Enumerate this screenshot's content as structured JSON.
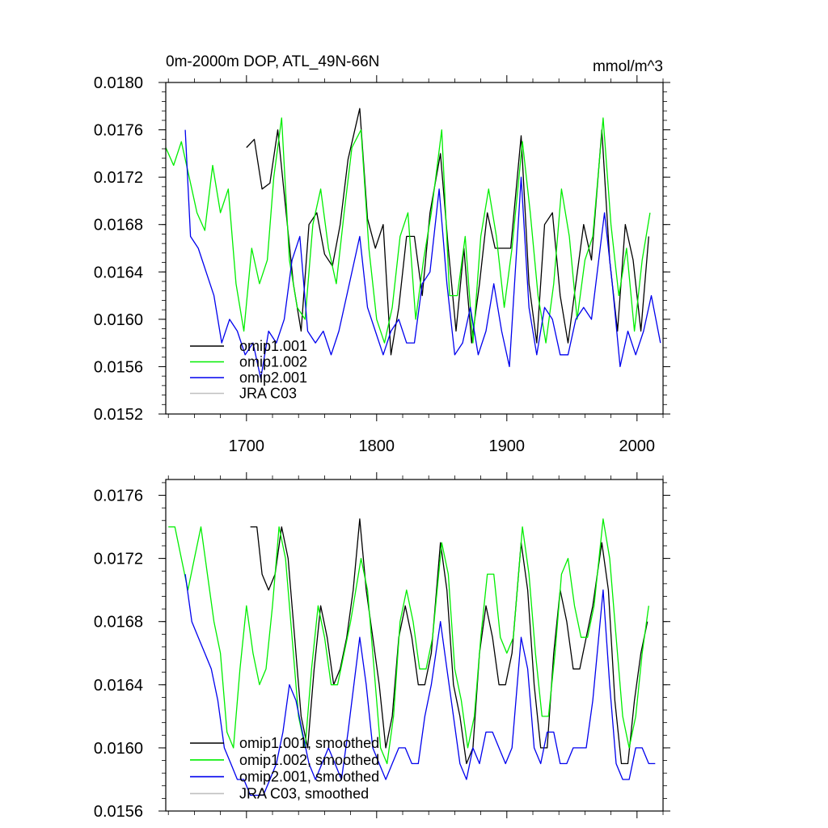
{
  "chart_data": [
    {
      "type": "line",
      "title": "0m-2000m DOP, ATL_49N-66N",
      "units": "mmol/m^3",
      "xlabel": "",
      "ylabel": "",
      "xlim": [
        1638,
        2020
      ],
      "ylim": [
        0.0152,
        0.018
      ],
      "xticks": [
        1700,
        1800,
        1900,
        2000
      ],
      "xtick_labels": [
        "1700",
        "1800",
        "1900",
        "2000"
      ],
      "yticks": [
        0.0152,
        0.0156,
        0.016,
        0.0164,
        0.0168,
        0.0172,
        0.0176,
        0.018
      ],
      "ytick_labels": [
        "0.0152",
        "0.0156",
        "0.0160",
        "0.0164",
        "0.0168",
        "0.0172",
        "0.0176",
        "0.0180"
      ],
      "legend_location": "bottom-left",
      "series": [
        {
          "name": "omip1.001",
          "color": "#000000",
          "x": [
            1700,
            1706,
            1712,
            1718,
            1724,
            1730,
            1736,
            1742,
            1748,
            1754,
            1760,
            1766,
            1772,
            1778,
            1787,
            1793,
            1799,
            1805,
            1811,
            1817,
            1823,
            1829,
            1835,
            1841,
            1849,
            1855,
            1861,
            1867,
            1873,
            1879,
            1885,
            1891,
            1897,
            1903,
            1911,
            1917,
            1923,
            1929,
            1935,
            1941,
            1947,
            1953,
            1959,
            1965,
            1973,
            1979,
            1985,
            1991,
            1997,
            2003,
            2009
          ],
          "y": [
            0.01745,
            0.01752,
            0.0171,
            0.01715,
            0.0176,
            0.01695,
            0.0163,
            0.0159,
            0.0168,
            0.0169,
            0.01655,
            0.01645,
            0.0168,
            0.01735,
            0.01778,
            0.01685,
            0.0166,
            0.0168,
            0.0157,
            0.0161,
            0.0167,
            0.0167,
            0.0162,
            0.0169,
            0.0174,
            0.0166,
            0.0159,
            0.0166,
            0.0158,
            0.0163,
            0.0169,
            0.0166,
            0.0166,
            0.0166,
            0.01755,
            0.0163,
            0.0158,
            0.0168,
            0.0169,
            0.0162,
            0.0158,
            0.0163,
            0.0168,
            0.0165,
            0.0176,
            0.0165,
            0.0159,
            0.0168,
            0.0165,
            0.0159,
            0.0167
          ]
        },
        {
          "name": "omip1.002",
          "color": "#00ee00",
          "x": [
            1638,
            1644,
            1650,
            1656,
            1662,
            1668,
            1674,
            1680,
            1686,
            1692,
            1698,
            1704,
            1710,
            1716,
            1721,
            1727,
            1733,
            1739,
            1745,
            1751,
            1757,
            1763,
            1769,
            1775,
            1781,
            1788,
            1794,
            1800,
            1806,
            1812,
            1818,
            1824,
            1830,
            1836,
            1842,
            1850,
            1856,
            1862,
            1868,
            1874,
            1880,
            1886,
            1892,
            1898,
            1904,
            1912,
            1918,
            1924,
            1930,
            1936,
            1942,
            1948,
            1954,
            1960,
            1966,
            1974,
            1980,
            1986,
            1992,
            1998,
            2004,
            2010
          ],
          "y": [
            0.01745,
            0.0173,
            0.0175,
            0.0172,
            0.0169,
            0.01675,
            0.0173,
            0.0169,
            0.0171,
            0.0163,
            0.0159,
            0.0166,
            0.0163,
            0.0165,
            0.0172,
            0.0177,
            0.0165,
            0.0161,
            0.016,
            0.0168,
            0.0171,
            0.0166,
            0.0163,
            0.0169,
            0.01745,
            0.0176,
            0.0166,
            0.016,
            0.0158,
            0.0161,
            0.0167,
            0.0169,
            0.016,
            0.0165,
            0.0169,
            0.0176,
            0.0162,
            0.0162,
            0.0167,
            0.0158,
            0.0167,
            0.0171,
            0.0167,
            0.0161,
            0.0166,
            0.0175,
            0.0169,
            0.0162,
            0.0158,
            0.0163,
            0.0171,
            0.0167,
            0.016,
            0.0165,
            0.0167,
            0.0177,
            0.0168,
            0.0162,
            0.0166,
            0.0159,
            0.0165,
            0.0169
          ]
        },
        {
          "name": "omip2.001",
          "color": "#0000ee",
          "x": [
            1653,
            1657,
            1663,
            1669,
            1675,
            1681,
            1687,
            1693,
            1699,
            1705,
            1711,
            1717,
            1723,
            1729,
            1735,
            1741,
            1747,
            1753,
            1759,
            1765,
            1771,
            1777,
            1787,
            1793,
            1799,
            1805,
            1811,
            1817,
            1823,
            1829,
            1835,
            1841,
            1848,
            1854,
            1860,
            1866,
            1872,
            1878,
            1884,
            1890,
            1896,
            1902,
            1911,
            1917,
            1923,
            1929,
            1935,
            1941,
            1947,
            1953,
            1959,
            1965,
            1975,
            1981,
            1987,
            1993,
            1999,
            2005,
            2011,
            2018
          ],
          "y": [
            0.0176,
            0.0167,
            0.0166,
            0.0164,
            0.0162,
            0.0158,
            0.016,
            0.0159,
            0.0157,
            0.0158,
            0.0155,
            0.0159,
            0.0158,
            0.016,
            0.0165,
            0.0167,
            0.0159,
            0.0158,
            0.0159,
            0.0157,
            0.0159,
            0.0162,
            0.0167,
            0.0161,
            0.0159,
            0.0157,
            0.0159,
            0.016,
            0.0158,
            0.0158,
            0.0163,
            0.0164,
            0.0171,
            0.0163,
            0.0157,
            0.0158,
            0.0161,
            0.0157,
            0.0159,
            0.0163,
            0.0159,
            0.0156,
            0.0172,
            0.0161,
            0.0157,
            0.0161,
            0.016,
            0.0157,
            0.0157,
            0.016,
            0.0161,
            0.016,
            0.0169,
            0.0163,
            0.0156,
            0.0159,
            0.0157,
            0.0159,
            0.0162,
            0.0158
          ]
        }
      ],
      "legend": [
        {
          "label": "omip1.001",
          "color": "#000000"
        },
        {
          "label": "omip1.002",
          "color": "#00ee00"
        },
        {
          "label": "omip2.001",
          "color": "#0000ee"
        },
        {
          "label": "JRA C03",
          "color": "#c0c0c0"
        }
      ]
    },
    {
      "type": "line",
      "title": "",
      "xlabel": "",
      "ylabel": "",
      "xlim": [
        1638,
        2020
      ],
      "ylim": [
        0.0156,
        0.0177
      ],
      "xticks": [
        1700,
        1800,
        1900,
        2000
      ],
      "xtick_labels": [],
      "yticks": [
        0.0156,
        0.016,
        0.0164,
        0.0168,
        0.0172,
        0.0176
      ],
      "ytick_labels": [
        "0.0156",
        "0.0160",
        "0.0164",
        "0.0168",
        "0.0172",
        "0.0176"
      ],
      "legend_location": "bottom-left",
      "series": [
        {
          "name": "omip1.001, smoothed",
          "color": "#000000",
          "x": [
            1703,
            1708,
            1712,
            1717,
            1722,
            1727,
            1732,
            1737,
            1742,
            1747,
            1752,
            1757,
            1762,
            1767,
            1772,
            1777,
            1782,
            1787,
            1792,
            1797,
            1802,
            1807,
            1812,
            1817,
            1822,
            1827,
            1832,
            1837,
            1842,
            1849,
            1854,
            1859,
            1864,
            1869,
            1874,
            1879,
            1884,
            1889,
            1894,
            1899,
            1904,
            1911,
            1916,
            1921,
            1926,
            1931,
            1936,
            1941,
            1946,
            1951,
            1956,
            1961,
            1966,
            1973,
            1978,
            1983,
            1988,
            1993,
            1998,
            2003,
            2008
          ],
          "y": [
            0.0174,
            0.0174,
            0.0171,
            0.017,
            0.0171,
            0.0174,
            0.0172,
            0.0167,
            0.0162,
            0.016,
            0.0165,
            0.0169,
            0.0167,
            0.0164,
            0.0165,
            0.0167,
            0.017,
            0.01745,
            0.017,
            0.0167,
            0.0164,
            0.016,
            0.0162,
            0.0167,
            0.0169,
            0.0167,
            0.0164,
            0.0164,
            0.0166,
            0.0173,
            0.017,
            0.0164,
            0.0162,
            0.0159,
            0.016,
            0.0166,
            0.0169,
            0.0167,
            0.0164,
            0.0164,
            0.0166,
            0.0173,
            0.017,
            0.0164,
            0.016,
            0.016,
            0.0166,
            0.017,
            0.0168,
            0.0165,
            0.0165,
            0.0167,
            0.0169,
            0.0173,
            0.017,
            0.0163,
            0.0159,
            0.0159,
            0.0163,
            0.0166,
            0.0168
          ]
        },
        {
          "name": "omip1.002, smoothed",
          "color": "#00ee00",
          "x": [
            1640,
            1645,
            1650,
            1655,
            1660,
            1665,
            1670,
            1675,
            1680,
            1685,
            1690,
            1695,
            1700,
            1705,
            1710,
            1715,
            1720,
            1725,
            1730,
            1735,
            1740,
            1745,
            1750,
            1755,
            1760,
            1765,
            1770,
            1775,
            1780,
            1788,
            1793,
            1798,
            1803,
            1808,
            1813,
            1818,
            1823,
            1828,
            1833,
            1838,
            1843,
            1850,
            1855,
            1860,
            1865,
            1870,
            1875,
            1880,
            1885,
            1890,
            1895,
            1900,
            1905,
            1912,
            1917,
            1922,
            1927,
            1932,
            1937,
            1942,
            1947,
            1952,
            1957,
            1962,
            1967,
            1974,
            1979,
            1984,
            1989,
            1994,
            1999,
            2004,
            2009
          ],
          "y": [
            0.0174,
            0.0174,
            0.0172,
            0.017,
            0.0172,
            0.0174,
            0.0171,
            0.0168,
            0.0166,
            0.0161,
            0.016,
            0.0165,
            0.0169,
            0.0166,
            0.0164,
            0.0165,
            0.0169,
            0.0174,
            0.0172,
            0.0167,
            0.0162,
            0.016,
            0.0165,
            0.0169,
            0.0167,
            0.0164,
            0.0164,
            0.0166,
            0.0168,
            0.0172,
            0.017,
            0.0165,
            0.016,
            0.0159,
            0.0162,
            0.0168,
            0.017,
            0.0168,
            0.0165,
            0.0165,
            0.0167,
            0.0173,
            0.0171,
            0.0165,
            0.0163,
            0.016,
            0.0162,
            0.0167,
            0.0171,
            0.0171,
            0.0167,
            0.0166,
            0.0167,
            0.0174,
            0.0171,
            0.0166,
            0.0162,
            0.0162,
            0.0166,
            0.0171,
            0.0172,
            0.0169,
            0.0167,
            0.0167,
            0.0169,
            0.01745,
            0.0172,
            0.0167,
            0.0162,
            0.016,
            0.0162,
            0.0166,
            0.0169
          ]
        },
        {
          "name": "omip2.001, smoothed",
          "color": "#0000ee",
          "x": [
            1653,
            1658,
            1663,
            1668,
            1673,
            1678,
            1683,
            1688,
            1693,
            1698,
            1703,
            1708,
            1713,
            1718,
            1723,
            1728,
            1733,
            1738,
            1743,
            1748,
            1753,
            1758,
            1763,
            1768,
            1773,
            1778,
            1787,
            1792,
            1797,
            1802,
            1807,
            1812,
            1817,
            1822,
            1827,
            1832,
            1837,
            1842,
            1849,
            1854,
            1859,
            1864,
            1869,
            1874,
            1879,
            1884,
            1889,
            1894,
            1899,
            1904,
            1911,
            1916,
            1921,
            1926,
            1931,
            1936,
            1941,
            1946,
            1951,
            1956,
            1961,
            1966,
            1974,
            1979,
            1984,
            1989,
            1994,
            1999,
            2004,
            2009,
            2014
          ],
          "y": [
            0.0171,
            0.0168,
            0.0167,
            0.0166,
            0.0165,
            0.0163,
            0.016,
            0.0159,
            0.0158,
            0.0158,
            0.0157,
            0.0157,
            0.0157,
            0.0158,
            0.0159,
            0.0161,
            0.0164,
            0.0163,
            0.0161,
            0.0159,
            0.0158,
            0.0159,
            0.016,
            0.0159,
            0.0158,
            0.0161,
            0.0167,
            0.0164,
            0.016,
            0.0159,
            0.0158,
            0.0159,
            0.016,
            0.016,
            0.0159,
            0.0159,
            0.0162,
            0.0164,
            0.0168,
            0.0165,
            0.0162,
            0.0159,
            0.0158,
            0.016,
            0.0159,
            0.0161,
            0.0161,
            0.016,
            0.0159,
            0.016,
            0.0167,
            0.0165,
            0.016,
            0.0159,
            0.0161,
            0.0161,
            0.0159,
            0.0159,
            0.016,
            0.016,
            0.016,
            0.0163,
            0.017,
            0.0164,
            0.0159,
            0.0158,
            0.0158,
            0.016,
            0.016,
            0.0159,
            0.0159
          ]
        }
      ],
      "legend": [
        {
          "label": "omip1.001, smoothed",
          "color": "#000000"
        },
        {
          "label": "omip1.002, smoothed",
          "color": "#00ee00"
        },
        {
          "label": "omip2.001, smoothed",
          "color": "#0000ee"
        },
        {
          "label": "JRA C03, smoothed",
          "color": "#c0c0c0"
        }
      ]
    }
  ]
}
